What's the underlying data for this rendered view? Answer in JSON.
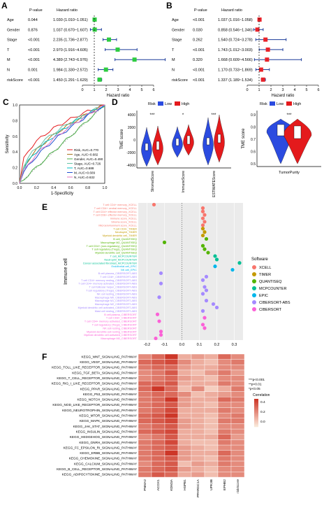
{
  "panels": {
    "A": {
      "letter": "A",
      "col_pvalue": "P-value",
      "col_hr": "Hazard ratio",
      "xlabel": "Hazard ratio",
      "ticks": [
        "0",
        "1",
        "2",
        "3",
        "4",
        "5",
        "6"
      ],
      "rows": [
        {
          "label": "Age",
          "p": "0.044",
          "hr": "1.030 (1.010~1.051)",
          "est": 1.03,
          "lo": 1.01,
          "hi": 1.051
        },
        {
          "label": "Gender",
          "p": "0.876",
          "hr": "1.037 (0.670~1.607)",
          "est": 1.037,
          "lo": 0.67,
          "hi": 1.607
        },
        {
          "label": "Stage",
          "p": "<0.001",
          "hr": "2.235 (1.736~2.877)",
          "est": 2.235,
          "lo": 1.736,
          "hi": 2.877
        },
        {
          "label": "T",
          "p": "<0.001",
          "hr": "2.970 (1.916~4.605)",
          "est": 2.97,
          "lo": 1.916,
          "hi": 4.605
        },
        {
          "label": "M",
          "p": "<0.001",
          "hr": "4.389 (2.743~6.976)",
          "est": 4.389,
          "lo": 2.743,
          "hi": 6.976
        },
        {
          "label": "N",
          "p": "0.001",
          "hr": "1.984 (1.330~2.572)",
          "est": 1.984,
          "lo": 1.33,
          "hi": 2.572
        },
        {
          "label": "riskScore",
          "p": "<0.001",
          "hr": "1.450 (1.291~1.629)",
          "est": 1.45,
          "lo": 1.291,
          "hi": 1.629
        }
      ]
    },
    "B": {
      "letter": "B",
      "col_pvalue": "P-value",
      "col_hr": "Hazard ratio",
      "xlabel": "Hazard ratio",
      "ticks": [
        "0",
        "1",
        "2",
        "3",
        "4",
        "5",
        "6"
      ],
      "rows": [
        {
          "label": "Age",
          "p": "<0.001",
          "hr": "1.037 (1.016~1.058)",
          "est": 1.037,
          "lo": 1.016,
          "hi": 1.058
        },
        {
          "label": "Gender",
          "p": "0.030",
          "hr": "0.858 (0.546~1.346)",
          "est": 0.858,
          "lo": 0.546,
          "hi": 1.346
        },
        {
          "label": "Stage",
          "p": "0.262",
          "hr": "1.540 (0.724~3.278)",
          "est": 1.54,
          "lo": 0.724,
          "hi": 3.278
        },
        {
          "label": "T",
          "p": "<0.001",
          "hr": "1.743 (1.012~3.003)",
          "est": 1.743,
          "lo": 1.012,
          "hi": 3.003
        },
        {
          "label": "M",
          "p": "0.320",
          "hr": "1.668 (0.609~4.566)",
          "est": 1.668,
          "lo": 0.609,
          "hi": 4.566
        },
        {
          "label": "N",
          "p": "<0.001",
          "hr": "1.170 (0.733~1.869)",
          "est": 1.17,
          "lo": 0.733,
          "hi": 1.869
        },
        {
          "label": "riskScore",
          "p": "<0.001",
          "hr": "1.337 (1.189~1.534)",
          "est": 1.337,
          "lo": 1.189,
          "hi": 1.534
        }
      ]
    },
    "C": {
      "letter": "C",
      "xlabel": "1-Specificity",
      "ylabel": "Sensitivity",
      "ticks": [
        "0.0",
        "0.2",
        "0.4",
        "0.6",
        "0.8",
        "1.0"
      ],
      "legend": [
        {
          "label": "Risk, AUC=0.770",
          "color": "#e41a1c"
        },
        {
          "label": "Age, AUC=0.682",
          "color": "#a6761d"
        },
        {
          "label": "Gender, AUC=0.490",
          "color": "#4daf4a"
        },
        {
          "label": "Stage, AUC=0.726",
          "color": "#66c2a5"
        },
        {
          "label": "T, AUC=0.688",
          "color": "#00bfc4"
        },
        {
          "label": "M, AUC=0.609",
          "color": "#1f4fd1"
        },
        {
          "label": "N, AUC=0.632",
          "color": "#e377c2"
        }
      ]
    },
    "D": {
      "letter": "D",
      "legend_title": "Risk",
      "low": "Low",
      "high": "High",
      "low_color": "#2b4be0",
      "high_color": "#e41a1c",
      "ylabel": "TME score",
      "yticks": [
        "4000",
        "2000",
        "0",
        "-2000",
        "-4000"
      ],
      "groups": [
        {
          "label": "StromalScore",
          "sig": "***"
        },
        {
          "label": "ImmuneScore",
          "sig": "*"
        },
        {
          "label": "ESTIMATEScore",
          "sig": "***"
        }
      ],
      "right": {
        "ylabel": "TME score",
        "yticks": [
          "0.9",
          "0.8",
          "0.7",
          "0.6",
          "0.5"
        ],
        "label": "TumorPurity",
        "sig": "***"
      }
    },
    "E": {
      "letter": "E",
      "ylabel": "Immune cell",
      "xticks": [
        "-0.2",
        "-0.1",
        "0.0",
        "0.1",
        "0.2",
        "0.3"
      ],
      "legend_title": "Software",
      "legend": [
        {
          "label": "XCELL",
          "color": "#f8766d"
        },
        {
          "label": "TIMER",
          "color": "#c49a00"
        },
        {
          "label": "QUANTISEQ",
          "color": "#53b400"
        },
        {
          "label": "MCPCOUNTER",
          "color": "#00c094"
        },
        {
          "label": "EPIC",
          "color": "#00b6eb"
        },
        {
          "label": "CIBERSORT-ABS",
          "color": "#a58aff"
        },
        {
          "label": "CIBERSORT",
          "color": "#fb61d7"
        }
      ],
      "cells": [
        {
          "label": "T cell CD4+ memory_XCELL",
          "sw": 0,
          "v": -0.16
        },
        {
          "label": "T cell CD4+ central memory_XCELL",
          "sw": 0,
          "v": 0.12
        },
        {
          "label": "T cell CD4+ effector memory_XCELL",
          "sw": 0,
          "v": 0.12
        },
        {
          "label": "T cell CD8+ effector memory_XCELL",
          "sw": 0,
          "v": 0.13
        },
        {
          "label": "Immune score_XCELL",
          "sw": 0,
          "v": 0.12
        },
        {
          "label": "Stroma score_XCELL",
          "sw": 0,
          "v": 0.13
        },
        {
          "label": "Microenvironment score_XCELL",
          "sw": 0,
          "v": 0.12
        },
        {
          "label": "T cell CD4+_TIMER",
          "sw": 1,
          "v": 0.12
        },
        {
          "label": "Neutrophil_TIMER",
          "sw": 1,
          "v": 0.13
        },
        {
          "label": "Myeloid dendritic cell_TIMER",
          "sw": 1,
          "v": 0.12
        },
        {
          "label": "B cell_QUANTISEQ",
          "sw": 2,
          "v": 0.14
        },
        {
          "label": "Macrophage M2_QUANTISEQ",
          "sw": 2,
          "v": -0.1
        },
        {
          "label": "T cell CD4+ (non-regulatory)_QUANTISEQ",
          "sw": 2,
          "v": 0.12
        },
        {
          "label": "T cell regulatory (Tregs)_QUANTISEQ",
          "sw": 2,
          "v": 0.13
        },
        {
          "label": "Myeloid dendritic cell_QUANTISEQ",
          "sw": 2,
          "v": 0.15
        },
        {
          "label": "T cell_MCPCOUNTER",
          "sw": 3,
          "v": 0.19
        },
        {
          "label": "Neutrophil_MCPCOUNTER",
          "sw": 3,
          "v": 0.2
        },
        {
          "label": "Cancer associated fibroblast_MCPCOUNTER",
          "sw": 3,
          "v": 0.33
        },
        {
          "label": "Endothelial cell_EPIC",
          "sw": 4,
          "v": 0.19
        },
        {
          "label": "NK cell_EPIC",
          "sw": 4,
          "v": 0.29
        },
        {
          "label": "B cell plasma_CIBERSORT-ABS",
          "sw": 5,
          "v": -0.12
        },
        {
          "label": "T cell CD8+_CIBERSORT-ABS",
          "sw": 5,
          "v": 0.14
        },
        {
          "label": "T cell CD4+ memory resting_CIBERSORT-ABS",
          "sw": 5,
          "v": 0.12
        },
        {
          "label": "T cell CD4+ memory activated_CIBERSORT-ABS",
          "sw": 5,
          "v": -0.12
        },
        {
          "label": "T cell follicular helper_CIBERSORT-ABS",
          "sw": 5,
          "v": 0.13
        },
        {
          "label": "T cell regulatory (Tregs)_CIBERSORT-ABS",
          "sw": 5,
          "v": 0.14
        },
        {
          "label": "NK cell resting_CIBERSORT-ABS",
          "sw": 5,
          "v": 0.12
        },
        {
          "label": "Macrophage M0_CIBERSORT-ABS",
          "sw": 5,
          "v": -0.13
        },
        {
          "label": "Macrophage M1_CIBERSORT-ABS",
          "sw": 5,
          "v": 0.14
        },
        {
          "label": "Macrophage M2_CIBERSORT-ABS",
          "sw": 5,
          "v": 0.18
        },
        {
          "label": "Myeloid dendritic cell activated_CIBERSORT-ABS",
          "sw": 5,
          "v": 0.2
        },
        {
          "label": "Mast cell resting_CIBERSORT-ABS",
          "sw": 5,
          "v": 0.12
        },
        {
          "label": "B cell plasma_CIBERSORT",
          "sw": 6,
          "v": -0.14
        },
        {
          "label": "T cell CD8+_CIBERSORT",
          "sw": 6,
          "v": 0.13
        },
        {
          "label": "T cell CD4+ memory activated_CIBERSORT",
          "sw": 6,
          "v": -0.13
        },
        {
          "label": "T cell regulatory (Tregs)_CIBERSORT",
          "sw": 6,
          "v": 0.12
        },
        {
          "label": "NK cell resting_CIBERSORT",
          "sw": 6,
          "v": 0.13
        },
        {
          "label": "Myeloid dendritic cell resting_CIBERSORT",
          "sw": 6,
          "v": -0.12
        },
        {
          "label": "Myeloid dendritic cell activated_CIBERSORT",
          "sw": 6,
          "v": -0.12
        },
        {
          "label": "Macrophage M0_CIBERSORT",
          "sw": 6,
          "v": -0.15
        }
      ]
    },
    "F": {
      "letter": "F",
      "columns": [
        "PNMA2",
        "ACOX1",
        "KDM3A",
        "HSPB1",
        "PPARGC1A",
        "UPK3B",
        "EPHB2",
        "riskScore"
      ],
      "rows": [
        "KEGG_WNT_SIGNALING_PATHWAY",
        "KEGG_VEGF_SIGNALING_PATHWAY",
        "KEGG_TOLL_LIKE_RECEPTOR_SIGNALING_PATHWAY",
        "KEGG_TGF_BETA_SIGNALING_PATHWAY",
        "KEGG_T_CELL_RECEPTOR_SIGNALING_PATHWAY",
        "KEGG_RIG_I_LIKE_RECEPTOR_SIGNALING_PATHWAY",
        "KEGG_PPAR_SIGNALING_PATHWAY",
        "KEGG_P53_SIGNALING_PATHWAY",
        "KEGG_NOTCH_SIGNALING_PATHWAY",
        "KEGG_NOD_LIKE_RECEPTOR_SIGNALING_PATHWAY",
        "KEGG_NEUROTROPHIN_SIGNALING_PATHWAY",
        "KEGG_MTOR_SIGNALING_PATHWAY",
        "KEGG_MAPK_SIGNALING_PATHWAY",
        "KEGG_JAK_STAT_SIGNALING_PATHWAY",
        "KEGG_INSULIN_SIGNALING_PATHWAY",
        "KEGG_HEDGEHOG_SIGNALING_PATHWAY",
        "KEGG_GNRH_SIGNALING_PATHWAY",
        "KEGG_FC_EPSILON_RI_SIGNALING_PATHWAY",
        "KEGG_ERBB_SIGNALING_PATHWAY",
        "KEGG_CHEMOKINE_SIGNALING_PATHWAY",
        "KEGG_CALCIUM_SIGNALING_PATHWAY",
        "KEGG_B_CELL_RECEPTOR_SIGNALING_PATHWAY",
        "KEGG_ADIPOCYTOKINE_SIGNALING_PATHWAY"
      ],
      "values": [
        [
          0.2,
          0.3,
          0.45,
          0.1,
          0.15,
          0.1,
          0.3,
          0.2
        ],
        [
          0.3,
          0.35,
          0.4,
          0.2,
          0.1,
          0.05,
          0.2,
          0.25
        ],
        [
          0.25,
          0.3,
          0.3,
          0.15,
          0.1,
          0.1,
          0.2,
          0.2
        ],
        [
          0.2,
          0.25,
          0.35,
          0.1,
          0.05,
          0.15,
          0.25,
          0.15
        ],
        [
          0.2,
          0.25,
          0.3,
          0.15,
          0.1,
          0.05,
          0.2,
          0.2
        ],
        [
          0.3,
          0.3,
          0.35,
          0.1,
          0.1,
          0.1,
          0.25,
          0.2
        ],
        [
          0.3,
          0.45,
          0.3,
          0.05,
          0.2,
          0.0,
          0.1,
          0.25
        ],
        [
          0.25,
          0.3,
          0.3,
          0.2,
          0.05,
          0.1,
          0.15,
          0.2
        ],
        [
          0.25,
          0.3,
          0.45,
          0.15,
          0.1,
          0.1,
          0.3,
          0.25
        ],
        [
          0.25,
          0.3,
          0.35,
          0.15,
          0.1,
          0.05,
          0.2,
          0.2
        ],
        [
          0.25,
          0.3,
          0.4,
          0.1,
          0.1,
          0.1,
          0.25,
          0.2
        ],
        [
          0.3,
          0.35,
          0.45,
          0.1,
          0.1,
          0.05,
          0.2,
          0.25
        ],
        [
          0.3,
          0.35,
          0.4,
          0.15,
          0.1,
          0.05,
          0.25,
          0.25
        ],
        [
          0.25,
          0.3,
          0.35,
          0.15,
          0.1,
          0.05,
          0.2,
          0.2
        ],
        [
          0.3,
          0.35,
          0.4,
          0.1,
          0.1,
          0.05,
          0.25,
          0.2
        ],
        [
          0.2,
          0.25,
          0.35,
          0.1,
          0.1,
          0.1,
          0.3,
          0.15
        ],
        [
          0.25,
          0.3,
          0.4,
          0.1,
          0.05,
          0.05,
          0.25,
          0.2
        ],
        [
          0.25,
          0.3,
          0.35,
          0.15,
          0.1,
          0.05,
          0.2,
          0.2
        ],
        [
          0.25,
          0.3,
          0.45,
          0.15,
          0.1,
          0.1,
          0.3,
          0.2
        ],
        [
          0.25,
          0.3,
          0.35,
          0.15,
          0.1,
          0.05,
          0.25,
          0.2
        ],
        [
          0.2,
          0.3,
          0.35,
          0.05,
          0.15,
          0.1,
          0.25,
          0.2
        ],
        [
          0.25,
          0.3,
          0.35,
          0.15,
          0.1,
          0.05,
          0.2,
          0.2
        ],
        [
          0.25,
          0.35,
          0.3,
          0.1,
          0.15,
          0.05,
          0.2,
          0.2
        ]
      ],
      "sig_legend": [
        "***p<0.001",
        "**p<0.01",
        "*p<0.05"
      ],
      "colorbar_title": "Correlation",
      "colorbar_ticks": [
        "0.4",
        "0.2",
        "0.0"
      ]
    }
  }
}
